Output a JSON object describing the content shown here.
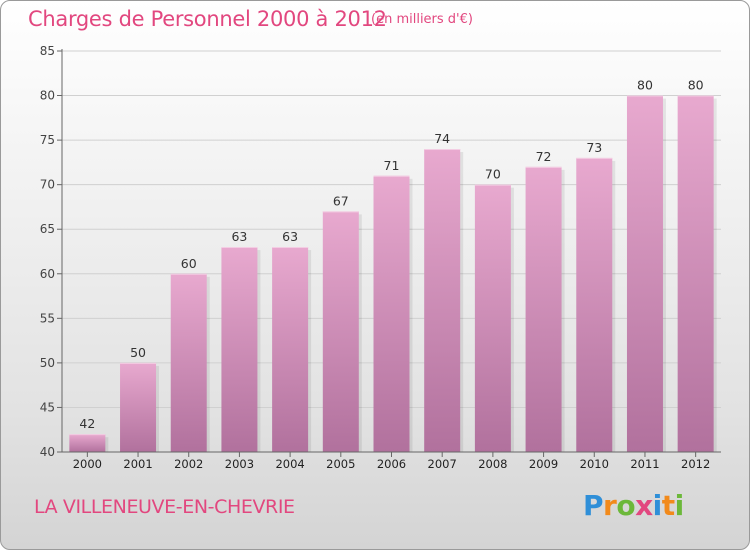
{
  "title": "Charges de Personnel 2000 à 2012",
  "subtitle": "(en milliers d'€)",
  "place": "LA VILLENEUVE-EN-CHEVRIE",
  "logo": {
    "text": "Proxiti",
    "letters": [
      {
        "ch": "P",
        "color": "#2f8fd8"
      },
      {
        "ch": "r",
        "color": "#f28a1b"
      },
      {
        "ch": "o",
        "color": "#6cb83a"
      },
      {
        "ch": "x",
        "color": "#e2477f"
      },
      {
        "ch": "i",
        "color": "#2f8fd8"
      },
      {
        "ch": "t",
        "color": "#f28a1b"
      },
      {
        "ch": "i",
        "color": "#6cb83a"
      }
    ]
  },
  "colors": {
    "accent": "#e2477f",
    "bar_top": "#e8a9cf",
    "bar_bottom": "#b1719d",
    "axis": "#666666",
    "grid": "#d0d0d0"
  },
  "chart_data": {
    "type": "bar",
    "categories": [
      "2000",
      "2001",
      "2002",
      "2003",
      "2004",
      "2005",
      "2006",
      "2007",
      "2008",
      "2009",
      "2010",
      "2011",
      "2012"
    ],
    "values": [
      42,
      50,
      60,
      63,
      63,
      67,
      71,
      74,
      70,
      72,
      73,
      80,
      80
    ],
    "ylim": [
      40,
      85
    ],
    "yticks": [
      40,
      45,
      50,
      55,
      60,
      65,
      70,
      75,
      80,
      85
    ],
    "grid": true,
    "data_labels": true
  }
}
